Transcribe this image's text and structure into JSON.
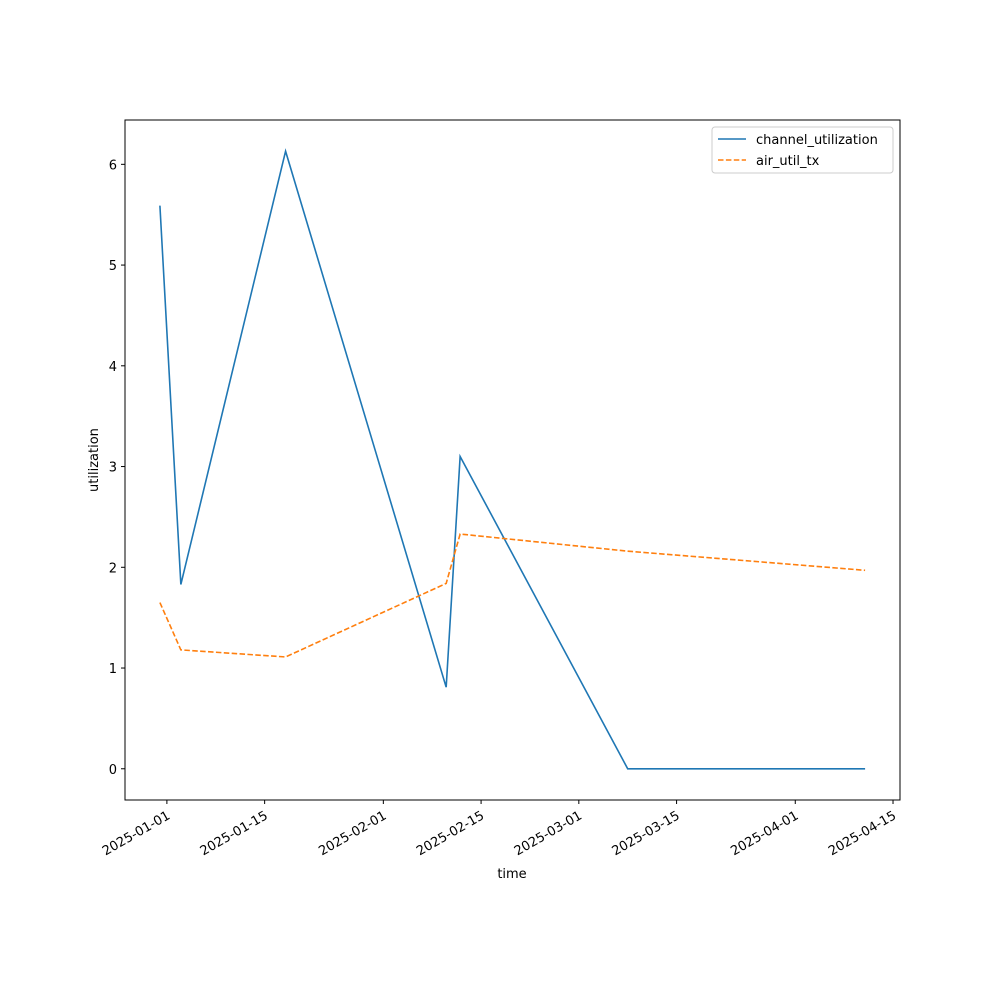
{
  "chart_data": {
    "type": "line",
    "x_label": "time",
    "y_label": "utilization",
    "x": [
      "2024-12-31",
      "2025-01-03",
      "2025-01-18",
      "2025-02-10",
      "2025-02-12",
      "2025-03-08",
      "2025-04-11"
    ],
    "series": [
      {
        "name": "channel_utilization",
        "color": "#1f77b4",
        "dash": "solid",
        "values": [
          5.59,
          1.83,
          6.13,
          0.81,
          3.1,
          0,
          0
        ]
      },
      {
        "name": "air_util_tx",
        "color": "#ff7f0e",
        "dash": "dashed",
        "values": [
          1.65,
          1.18,
          1.11,
          1.84,
          2.33,
          2.16,
          1.97
        ]
      }
    ],
    "xlim": [
      "2024-12-26",
      "2025-04-16"
    ],
    "xticks": [
      "2025-01-01",
      "2025-01-15",
      "2025-02-01",
      "2025-02-15",
      "2025-03-01",
      "2025-03-15",
      "2025-04-01",
      "2025-04-15"
    ],
    "ylim": [
      -0.31,
      6.44
    ],
    "yticks": [
      0,
      1,
      2,
      3,
      4,
      5,
      6
    ],
    "legend": "upper right"
  }
}
